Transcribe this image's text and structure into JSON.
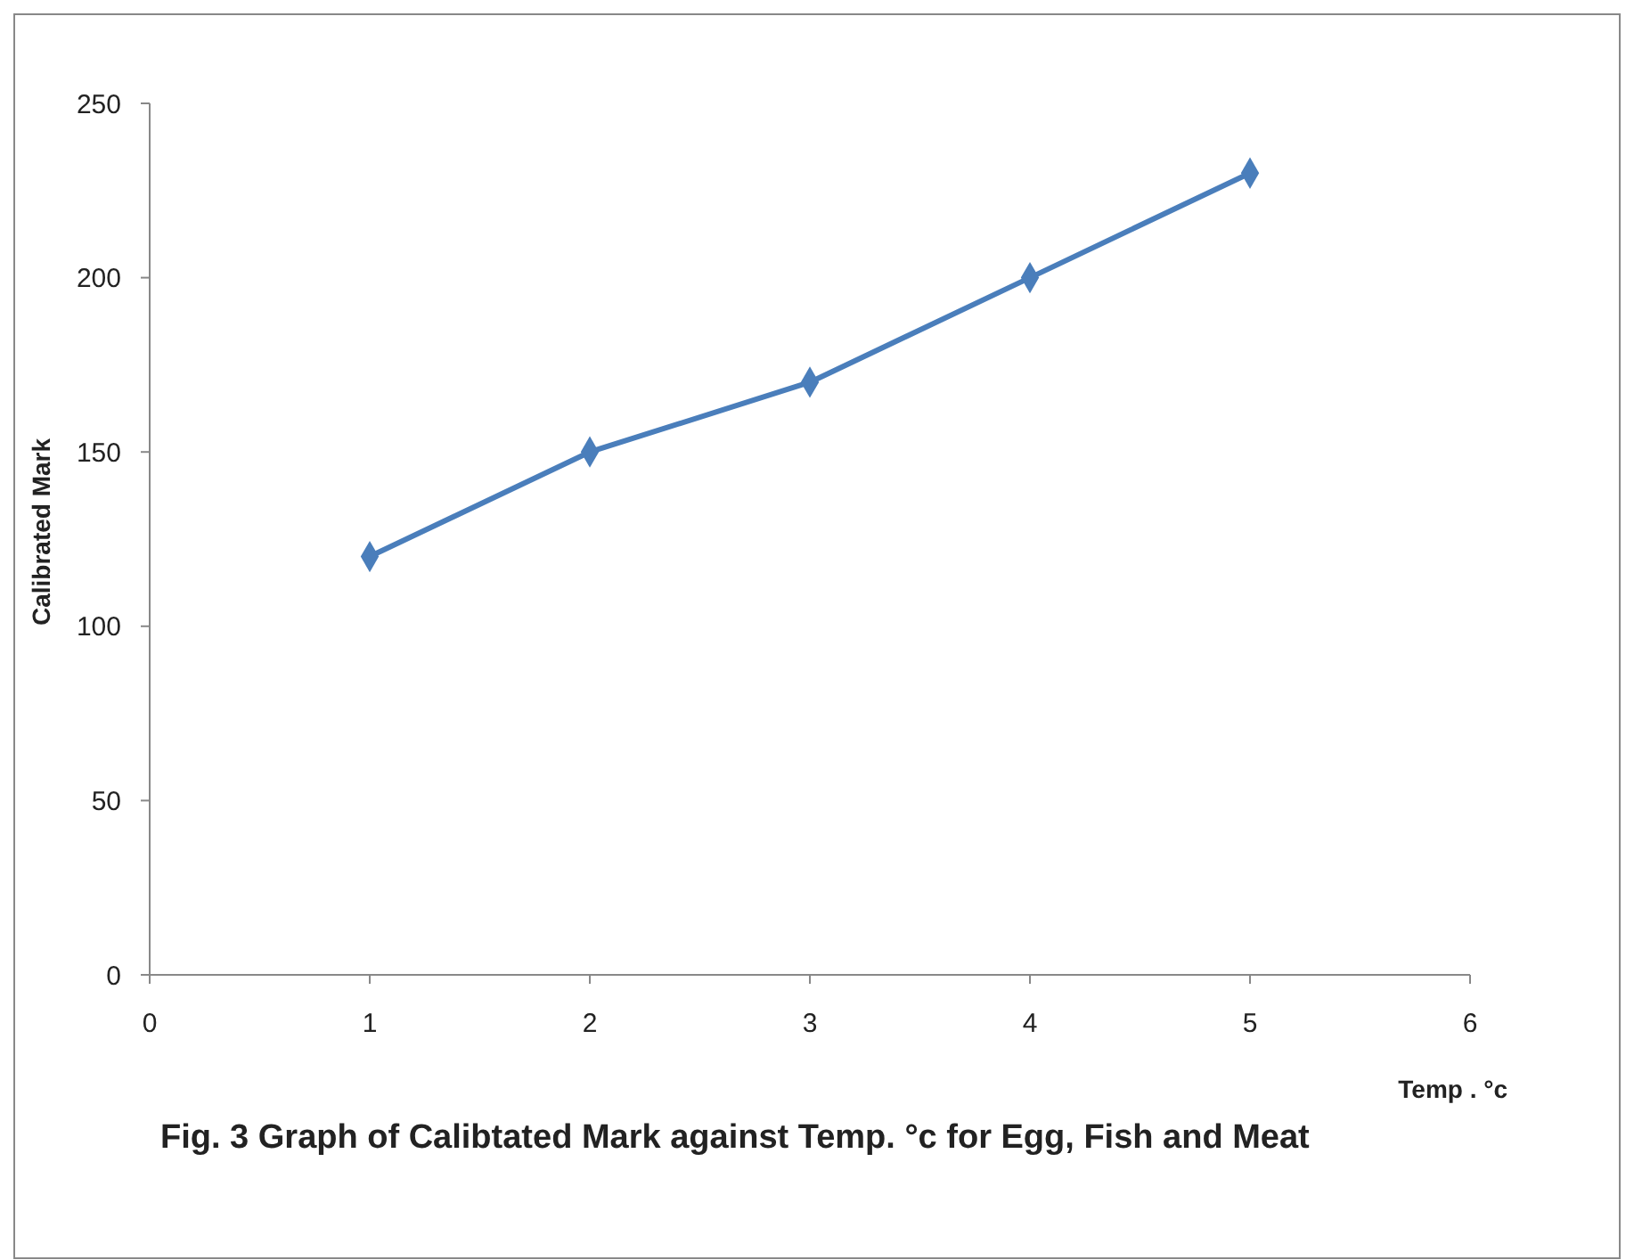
{
  "chart_data": {
    "type": "line",
    "title": "Fig. 3 Graph of Calibtated Mark against Temp. °c for Egg, Fish and Meat",
    "xlabel": "Temp . °c",
    "ylabel": "Calibrated Mark",
    "x": [
      1,
      2,
      3,
      4,
      5
    ],
    "series": [
      {
        "color": "#4a7ebb",
        "values": [
          120,
          150,
          170,
          200,
          230
        ]
      }
    ],
    "xlim": [
      0,
      6
    ],
    "xticks": [
      0,
      1,
      2,
      3,
      4,
      5,
      6
    ],
    "ylim": [
      0,
      250
    ],
    "yticks": [
      0,
      50,
      100,
      150,
      200,
      250
    ],
    "grid": false,
    "marker": "diamond",
    "line_style": "solid"
  }
}
